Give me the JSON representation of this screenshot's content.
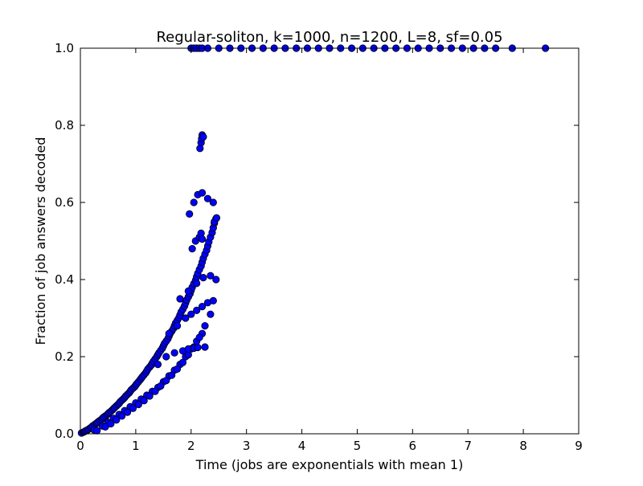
{
  "chart_data": {
    "type": "scatter",
    "title": "Regular-soliton, k=1000, n=1200, L=8, sf=0.05",
    "xlabel": "Time (jobs are exponentials with mean 1)",
    "ylabel": "Fraction of job answers decoded",
    "xlim": [
      0,
      9
    ],
    "ylim": [
      0,
      1.0
    ],
    "xticks": [
      "0",
      "1",
      "2",
      "3",
      "4",
      "5",
      "6",
      "7",
      "8",
      "9"
    ],
    "yticks": [
      "0.0",
      "0.2",
      "0.4",
      "0.6",
      "0.8",
      "1.0"
    ],
    "grid": false,
    "legend": false,
    "marker_color": "#0000ff",
    "marker_edge": "#000000",
    "series": [
      {
        "x": [
          0.02,
          0.05,
          0.08,
          0.1,
          0.13,
          0.15,
          0.18,
          0.2,
          0.22,
          0.25,
          0.28,
          0.3,
          0.32,
          0.35,
          0.38,
          0.4,
          0.42,
          0.45,
          0.48,
          0.5,
          0.52,
          0.55,
          0.58,
          0.6,
          0.62,
          0.65,
          0.68,
          0.7,
          0.72,
          0.75,
          0.78,
          0.8,
          0.82,
          0.85,
          0.88,
          0.9,
          0.92,
          0.95,
          0.98,
          1.0,
          1.02,
          1.05,
          1.08,
          1.1,
          1.12,
          1.15,
          1.18,
          1.2,
          1.22,
          1.25,
          1.28,
          1.3,
          1.32,
          1.35,
          1.38,
          1.4,
          1.42,
          1.45,
          1.48,
          1.5,
          1.52,
          1.55,
          1.58,
          1.6,
          1.62,
          1.65,
          1.68,
          1.7,
          1.72,
          1.75,
          1.78,
          1.8,
          1.82,
          1.85,
          1.88,
          1.9,
          1.92,
          1.95,
          1.98,
          2.0,
          2.02,
          2.05,
          2.08,
          2.1,
          2.12,
          2.15,
          2.18,
          2.2,
          2.22,
          2.25,
          2.28,
          2.3,
          2.32,
          2.35,
          2.38,
          2.4,
          2.42,
          2.45,
          0.25,
          0.4,
          0.5,
          0.6,
          0.7,
          0.8,
          0.9,
          1.0,
          1.1,
          1.2,
          1.3,
          1.4,
          1.5,
          1.6,
          1.7,
          1.8,
          1.9,
          2.0,
          2.1,
          2.2,
          0.3,
          0.45,
          0.55,
          0.65,
          0.75,
          0.85,
          0.95,
          1.05,
          1.15,
          1.25,
          1.35,
          1.45,
          1.55,
          1.65,
          1.75,
          1.85,
          1.95,
          2.05,
          2.15,
          2.25,
          2.35,
          1.4,
          1.55,
          1.7,
          1.85,
          1.95,
          2.05,
          2.12,
          2.25,
          1.6,
          1.75,
          1.9,
          2.0,
          2.1,
          2.2,
          2.3,
          2.4,
          1.8,
          1.95,
          2.1,
          2.22,
          2.35,
          2.45,
          2.02,
          2.08,
          2.15,
          2.18,
          2.2,
          2.42,
          2.46,
          1.97,
          2.05,
          2.12,
          2.2,
          2.3,
          2.4,
          2.16,
          2.18,
          2.19,
          2.2,
          2.22,
          2.0,
          2.05,
          2.1,
          2.15,
          2.2,
          2.3,
          2.5,
          2.7,
          2.9,
          3.1,
          3.3,
          3.5,
          3.7,
          3.9,
          4.1,
          4.3,
          4.5,
          4.7,
          4.9,
          5.1,
          5.3,
          5.5,
          5.7,
          5.9,
          6.1,
          6.3,
          6.5,
          6.7,
          6.9,
          7.1,
          7.3,
          7.5,
          7.8,
          8.4
        ],
        "y": [
          0.002,
          0.004,
          0.006,
          0.008,
          0.01,
          0.012,
          0.015,
          0.017,
          0.02,
          0.023,
          0.026,
          0.028,
          0.031,
          0.034,
          0.037,
          0.04,
          0.043,
          0.046,
          0.049,
          0.052,
          0.055,
          0.058,
          0.062,
          0.065,
          0.068,
          0.072,
          0.076,
          0.079,
          0.083,
          0.087,
          0.091,
          0.094,
          0.098,
          0.102,
          0.106,
          0.11,
          0.114,
          0.118,
          0.122,
          0.126,
          0.13,
          0.135,
          0.14,
          0.144,
          0.148,
          0.153,
          0.158,
          0.163,
          0.168,
          0.173,
          0.178,
          0.183,
          0.188,
          0.194,
          0.2,
          0.205,
          0.21,
          0.216,
          0.222,
          0.228,
          0.234,
          0.24,
          0.246,
          0.253,
          0.26,
          0.266,
          0.273,
          0.28,
          0.287,
          0.294,
          0.301,
          0.308,
          0.316,
          0.323,
          0.331,
          0.339,
          0.347,
          0.355,
          0.363,
          0.372,
          0.38,
          0.389,
          0.398,
          0.407,
          0.416,
          0.426,
          0.435,
          0.445,
          0.455,
          0.466,
          0.476,
          0.487,
          0.498,
          0.51,
          0.522,
          0.534,
          0.546,
          0.558,
          0.01,
          0.02,
          0.03,
          0.04,
          0.05,
          0.06,
          0.07,
          0.08,
          0.09,
          0.1,
          0.11,
          0.12,
          0.135,
          0.15,
          0.165,
          0.18,
          0.2,
          0.22,
          0.24,
          0.26,
          0.008,
          0.018,
          0.026,
          0.036,
          0.046,
          0.056,
          0.066,
          0.076,
          0.086,
          0.098,
          0.11,
          0.124,
          0.138,
          0.152,
          0.168,
          0.185,
          0.205,
          0.225,
          0.25,
          0.28,
          0.31,
          0.18,
          0.2,
          0.21,
          0.215,
          0.22,
          0.222,
          0.224,
          0.225,
          0.26,
          0.28,
          0.3,
          0.31,
          0.32,
          0.33,
          0.34,
          0.345,
          0.35,
          0.37,
          0.39,
          0.405,
          0.41,
          0.4,
          0.48,
          0.5,
          0.51,
          0.52,
          0.505,
          0.55,
          0.56,
          0.57,
          0.6,
          0.62,
          0.625,
          0.61,
          0.6,
          0.74,
          0.755,
          0.765,
          0.775,
          0.77,
          1.0,
          1.0,
          1.0,
          1.0,
          1.0,
          1.0,
          1.0,
          1.0,
          1.0,
          1.0,
          1.0,
          1.0,
          1.0,
          1.0,
          1.0,
          1.0,
          1.0,
          1.0,
          1.0,
          1.0,
          1.0,
          1.0,
          1.0,
          1.0,
          1.0,
          1.0,
          1.0,
          1.0,
          1.0,
          1.0,
          1.0,
          1.0,
          1.0,
          1.0
        ]
      }
    ]
  }
}
